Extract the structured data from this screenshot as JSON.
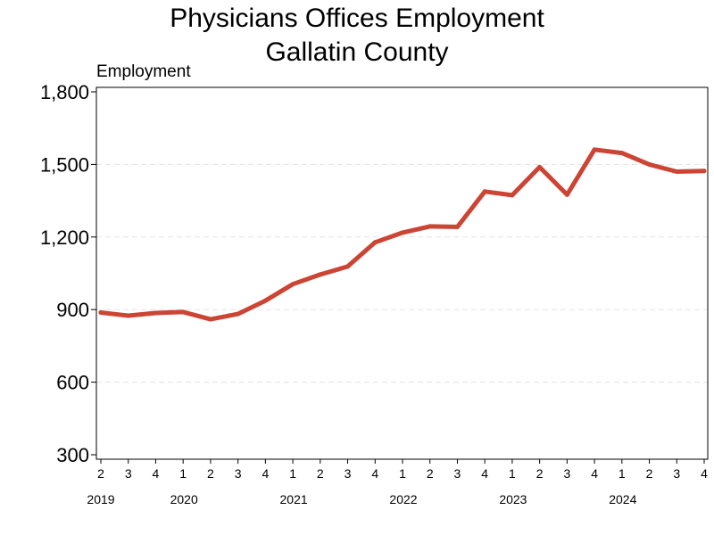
{
  "chart_data": {
    "type": "line",
    "title_line1": "Physicians Offices Employment",
    "title_line2": "Gallatin County",
    "ylabel": "Employment",
    "ylim": [
      300,
      1800
    ],
    "yticks": [
      300,
      600,
      900,
      1200,
      1500,
      1800
    ],
    "ytick_labels": [
      "300",
      "600",
      "900",
      "1,200",
      "1,500",
      "1,800"
    ],
    "grid": "horizontal dashed",
    "series_color": "#cc4433",
    "x_quarter_labels": [
      "2",
      "3",
      "4",
      "1",
      "2",
      "3",
      "4",
      "1",
      "2",
      "3",
      "4",
      "1",
      "2",
      "3",
      "4",
      "1",
      "2",
      "3",
      "4",
      "1",
      "2",
      "3",
      "4"
    ],
    "years": [
      {
        "label": "2019",
        "quarter_index": 0
      },
      {
        "label": "2020",
        "quarter_index": 3
      },
      {
        "label": "2021",
        "quarter_index": 7
      },
      {
        "label": "2022",
        "quarter_index": 11
      },
      {
        "label": "2023",
        "quarter_index": 15
      },
      {
        "label": "2024",
        "quarter_index": 19
      }
    ],
    "x": [
      "2019 Q2",
      "2019 Q3",
      "2019 Q4",
      "2020 Q1",
      "2020 Q2",
      "2020 Q3",
      "2020 Q4",
      "2021 Q1",
      "2021 Q2",
      "2021 Q3",
      "2021 Q4",
      "2022 Q1",
      "2022 Q2",
      "2022 Q3",
      "2022 Q4",
      "2023 Q1",
      "2023 Q2",
      "2023 Q3",
      "2023 Q4",
      "2024 Q1",
      "2024 Q2",
      "2024 Q3",
      "2024 Q4"
    ],
    "values": [
      888,
      875,
      886,
      890,
      860,
      882,
      937,
      1005,
      1045,
      1078,
      1178,
      1218,
      1244,
      1242,
      1388,
      1373,
      1489,
      1375,
      1561,
      1547,
      1500,
      1470,
      1473
    ]
  }
}
